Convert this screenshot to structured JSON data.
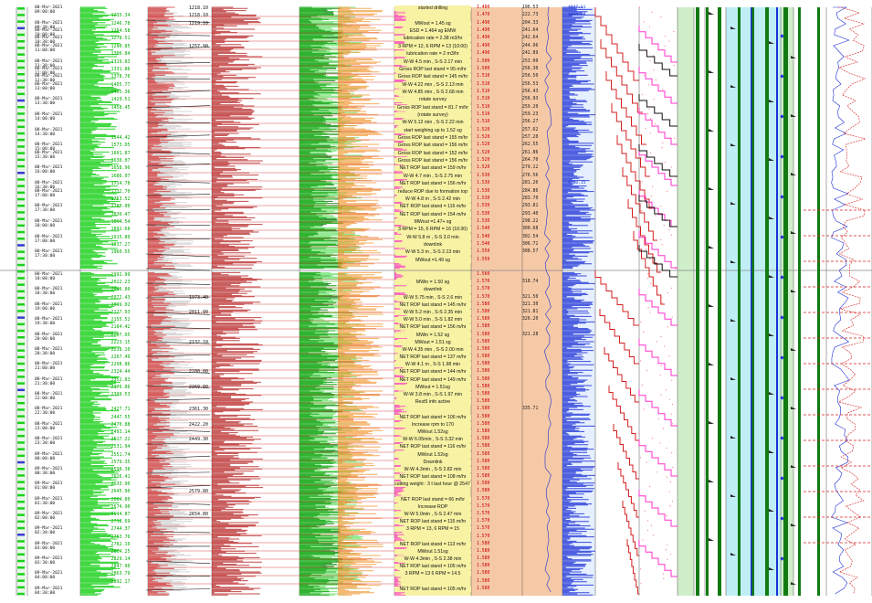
{
  "rows_top": [
    {
      "t": "08-Mar-2021\n09:00:00",
      "d1": "",
      "d2": "1218.10",
      "rem": "started drilling",
      "mw": "1.480",
      "bv": "196.53",
      "pv": "4047.11"
    },
    {
      "t": "",
      "d1": "1235.34",
      "d2": "1218.10",
      "rem": "",
      "mw": "1.470",
      "bv": "222.73",
      "pv": "4094.28"
    },
    {
      "t": "08-Mar-2021\n09:30:00",
      "d1": "1246.78",
      "d2": "1219.10",
      "rem": "MWout = 1.45 sg",
      "mw": "1.490",
      "bv": "204.33",
      "pv": ""
    },
    {
      "t": "08-Mar-2021\n10:00:00",
      "d1": "1264.58",
      "d2": "",
      "rem": "ESD = 1.464 sg EMW",
      "mw": "1.490",
      "bv": "241.64",
      "pv": ""
    },
    {
      "t": "08-Mar-2021\n10:30:00",
      "d1": "1278.51",
      "d2": "",
      "rem": "lubrication rate = 2.38 m3/hr",
      "mw": "1.490",
      "bv": "242.64",
      "pv": ""
    },
    {
      "t": "08-Mar-2021\n11:00:00",
      "d1": "1290.85",
      "d2": "1257.90",
      "rem": "3 RPM = 12, 6 RPM = 13 (10:00)",
      "mw": "1.490",
      "bv": "244.96",
      "pv": ""
    },
    {
      "t": "",
      "d1": "1306.84",
      "d2": "",
      "rem": "lubrication rate = 2 m3/hr",
      "mw": "1.490",
      "bv": "242.89",
      "pv": ""
    },
    {
      "t": "08-Mar-2021\n11:30:00",
      "d1": "1319.83",
      "d2": "",
      "rem": "W-W 4.5 min , S-S 2.17 min",
      "mw": "1.500",
      "bv": "253.00",
      "pv": ""
    },
    {
      "t": "08-Mar-2021\n12:00:00",
      "d1": "1331.86",
      "d2": "",
      "rem": "Gross ROP last stand = 95 m/hr",
      "mw": "1.500",
      "bv": "256.30",
      "pv": ""
    },
    {
      "t": "08-Mar-2021\n12:30:00",
      "d1": "1378.76",
      "d2": "",
      "rem": "Gross ROP last stand = 145 m/hr",
      "mw": "1.510",
      "bv": "256.50",
      "pv": ""
    },
    {
      "t": "08-Mar-2021\n13:00:00",
      "d1": "1405.77",
      "d2": "",
      "rem": "W-W 4.22 min , S-S 2.13 min",
      "mw": "1.510",
      "bv": "256.53",
      "pv": ""
    },
    {
      "t": "",
      "d1": "1405.36",
      "d2": "",
      "rem": "W-W 4.85 min , S-S 2.68 min",
      "mw": "1.510",
      "bv": "256.43",
      "pv": ""
    },
    {
      "t": "08-Mar-2021\n13:30:00",
      "d1": "1429.51",
      "d2": "",
      "rem": "rotate survey",
      "mw": "1.510",
      "bv": "256.93",
      "pv": ""
    },
    {
      "t": "",
      "d1": "1458.45",
      "d2": "",
      "rem": "Gross ROP last stand = 81.7 m/hr",
      "mw": "1.510",
      "bv": "259.20",
      "pv": ""
    },
    {
      "t": "08-Mar-2021\n14:00:00",
      "d1": "",
      "d2": "",
      "rem": "(rotate survey)",
      "mw": "1.510",
      "bv": "259.23",
      "pv": ""
    },
    {
      "t": "",
      "d1": "",
      "d2": "",
      "rem": "W-W 5.12 min , S-S 2.22 min",
      "mw": "1.510",
      "bv": "256.27",
      "pv": ""
    },
    {
      "t": "08-Mar-2021\n14:30:00",
      "d1": "",
      "d2": "",
      "rem": "start weighing up to 1.52 sg",
      "mw": "1.520",
      "bv": "257.62",
      "pv": ""
    },
    {
      "t": "",
      "d1": "1544.42",
      "d2": "",
      "rem": "Gross ROP last stand = 155 m/hr",
      "mw": "1.520",
      "bv": "257.20",
      "pv": ""
    },
    {
      "t": "08-Mar-2021\n15:00:00",
      "d1": "1573.05",
      "d2": "",
      "rem": "Gross ROP last stand = 156 m/hr",
      "mw": "1.520",
      "bv": "262.55",
      "pv": ""
    },
    {
      "t": "08-Mar-2021\n15:30:00",
      "d1": "1601.87",
      "d2": "",
      "rem": "Gross ROP last stand = 152 m/hr",
      "mw": "1.520",
      "bv": "261.86",
      "pv": ""
    },
    {
      "t": "",
      "d1": "1630.07",
      "d2": "",
      "rem": "Gross ROP last stand = 156 m/hr",
      "mw": "1.520",
      "bv": "264.70",
      "pv": ""
    },
    {
      "t": "08-Mar-2021\n16:00:00",
      "d1": "1658.96",
      "d2": "",
      "rem": "NET ROP last stand = 159 m/hr",
      "mw": "1.520",
      "bv": "279.12",
      "pv": ""
    },
    {
      "t": "",
      "d1": "1686.07",
      "d2": "",
      "rem": "W-W 4.7 min , S-S 2.75 min",
      "mw": "1.530",
      "bv": "276.56",
      "pv": ""
    },
    {
      "t": "08-Mar-2021\n16:30:00",
      "d1": "1714.78",
      "d2": "",
      "rem": "NET ROP last stand = 156 m/hr",
      "mw": "1.530",
      "bv": "281.26",
      "pv": "4540.15"
    },
    {
      "t": "08-Mar-2021\n17:00:00",
      "d1": "1732.70",
      "d2": "",
      "rem": "reduce ROP due to formation top",
      "mw": "1.530",
      "bv": "284.86",
      "pv": ""
    },
    {
      "t": "",
      "d1": "1753.52",
      "d2": "",
      "rem": "W-W 4.8 m , S-S 2.42 min",
      "mw": "1.530",
      "bv": "283.70",
      "pv": ""
    },
    {
      "t": "08-Mar-2021\n17:30:00",
      "d1": "1780.00",
      "d2": "",
      "rem": "NET ROP last stand = 116 m/hr",
      "mw": "1.530",
      "bv": "293.81",
      "pv": ""
    },
    {
      "t": "",
      "d1": "1836.47",
      "d2": "",
      "rem": "NET ROP last stand = 154 m/hr",
      "mw": "1.530",
      "bv": "293.40",
      "pv": ""
    },
    {
      "t": "08-Mar-2021\n18:00:00",
      "d1": "1864.54",
      "d2": "",
      "rem": "MWout =1.47+ sg",
      "mw": "1.530",
      "bv": "298.22",
      "pv": ""
    },
    {
      "t": "",
      "d1": "1892.68",
      "d2": "",
      "rem": "3 RPM = 15, 6 RPM = 16 (16:30)",
      "mw": "1.540",
      "bv": "300.68",
      "pv": ""
    },
    {
      "t": "08-Mar-2021\n17:00:00",
      "d1": "1915.89",
      "d2": "",
      "rem": "W-W 5.8 m , S-S 3.0 min",
      "mw": "1.540",
      "bv": "302.54",
      "pv": ""
    },
    {
      "t": "",
      "d1": "1937.27",
      "d2": "",
      "rem": "downlink",
      "mw": "1.540",
      "bv": "306.72",
      "pv": ""
    },
    {
      "t": "08-Mar-2021\n17:30:00",
      "d1": "1960.55",
      "d2": "",
      "rem": "W-W 5.3 m , S-S 2.13 min",
      "mw": "1.550",
      "bv": "308.57",
      "pv": ""
    },
    {
      "t": "",
      "d1": "",
      "d2": "",
      "rem": "MWout =1.49 sg",
      "mw": "1.550",
      "bv": "",
      "pv": ""
    }
  ],
  "rows_bottom": [
    {
      "t": "08-Mar-2021\n18:00:00",
      "d1": "1992.99",
      "d2": "",
      "rem": "",
      "mw": "1.560",
      "bv": "",
      "pv": ""
    },
    {
      "t": "",
      "d1": "2022.23",
      "d2": "",
      "rem": "MWin = 1.50 sg",
      "mw": "1.570",
      "bv": "318.74",
      "pv": ""
    },
    {
      "t": "08-Mar-2021\n18:30:00",
      "d1": "2046.80",
      "d2": "",
      "rem": "downlink",
      "mw": "1.570",
      "bv": "",
      "pv": ""
    },
    {
      "t": "",
      "d1": "2072.43",
      "d2": "1973.40",
      "rem": "W-W 5.75 min , S-S 2.6 min",
      "mw": "1.570",
      "bv": "321.50",
      "pv": ""
    },
    {
      "t": "08-Mar-2021\n19:00:00",
      "d1": "2099.02",
      "d2": "",
      "rem": "NET ROP last stand = 145 m/hr",
      "mw": "1.580",
      "bv": "321.30",
      "pv": ""
    },
    {
      "t": "",
      "d1": "2127.93",
      "d2": "2011.90",
      "rem": "W-W 5.2 min , S-S 2.35 min",
      "mw": "1.580",
      "bv": "321.81",
      "pv": ""
    },
    {
      "t": "08-Mar-2021\n19:30:00",
      "d1": "2155.52",
      "d2": "",
      "rem": "W-W 5.0 min , S-S 1.82 min",
      "mw": "1.580",
      "bv": "326.20",
      "pv": ""
    },
    {
      "t": "",
      "d1": "2184.42",
      "d2": "",
      "rem": "NET ROP last stand = 156 m/hr",
      "mw": "1.580",
      "bv": "",
      "pv": ""
    },
    {
      "t": "08-Mar-2021\n20:00:00",
      "d1": "2207.05",
      "d2": "",
      "rem": "MWin = 1.52 sg",
      "mw": "1.580",
      "bv": "321.28",
      "pv": ""
    },
    {
      "t": "",
      "d1": "2223.15",
      "d2": "2132.10",
      "rem": "MWout = 1.51 sg",
      "mw": "1.580",
      "bv": "",
      "pv": ""
    },
    {
      "t": "08-Mar-2021\n20:30:00",
      "d1": "2238.10",
      "d2": "",
      "rem": "W-W 4.35 min , S-S 2.00 min",
      "mw": "1.580",
      "bv": "",
      "pv": ""
    },
    {
      "t": "",
      "d1": "2267.49",
      "d2": "",
      "rem": "NET ROP last stand = 137 m/hr",
      "mw": "1.580",
      "bv": "",
      "pv": ""
    },
    {
      "t": "08-Mar-2021\n21:00:00",
      "d1": "2298.86",
      "d2": "",
      "rem": "W-W 4.1 m , S-S 1.98 min",
      "mw": "1.580",
      "bv": "",
      "pv": ""
    },
    {
      "t": "",
      "d1": "2324.44",
      "d2": "2200.00",
      "rem": "NET ROP last stand = 144 m/hr",
      "mw": "1.580",
      "bv": "",
      "pv": ""
    },
    {
      "t": "08-Mar-2021\n21:30:00",
      "d1": "2352.83",
      "d2": "",
      "rem": "NET ROP last stand = 149 m/hr",
      "mw": "1.580",
      "bv": "",
      "pv": ""
    },
    {
      "t": "",
      "d1": "2376.86",
      "d2": "2269.80",
      "rem": "MWout = 1.51sg",
      "mw": "1.580",
      "bv": "",
      "pv": ""
    },
    {
      "t": "08-Mar-2021\n22:00:00",
      "d1": "2399.53",
      "d2": "",
      "rem": "W-W 3.8 min , S-S 1.97 min",
      "mw": "1.580",
      "bv": "",
      "pv": ""
    },
    {
      "t": "",
      "d1": "",
      "d2": "",
      "rem": "Rest5 info active",
      "mw": "1.580",
      "bv": "",
      "pv": ""
    },
    {
      "t": "08-Mar-2021\n22:30:00",
      "d1": "2427.71",
      "d2": "2361.30",
      "rem": "",
      "mw": "1.580",
      "bv": "335.71",
      "pv": ""
    },
    {
      "t": "",
      "d1": "2447.55",
      "d2": "",
      "rem": "NET ROP last stand = 106 m/hr",
      "mw": "1.580",
      "bv": "",
      "pv": ""
    },
    {
      "t": "08-Mar-2021\n23:00:00",
      "d1": "2470.88",
      "d2": "2422.20",
      "rem": "Increase rpm to 170",
      "mw": "1.580",
      "bv": "",
      "pv": ""
    },
    {
      "t": "",
      "d1": "2493.14",
      "d2": "",
      "rem": "MWout 1.52sg",
      "mw": "1.580",
      "bv": "",
      "pv": ""
    },
    {
      "t": "08-Mar-2021\n23:30:00",
      "d1": "2517.22",
      "d2": "2449.30",
      "rem": "W-W 6.05min , S-S 3.32 min",
      "mw": "1.580",
      "bv": "",
      "pv": ""
    },
    {
      "t": "",
      "d1": "2531.94",
      "d2": "",
      "rem": "NET ROP last stand = 116 m/hr",
      "mw": "1.580",
      "bv": "",
      "pv": ""
    },
    {
      "t": "09-Mar-2021\n00:00:00",
      "d1": "2551.74",
      "d2": "",
      "rem": "MWout 1.52sg",
      "mw": "1.580",
      "bv": "",
      "pv": ""
    },
    {
      "t": "",
      "d1": "2579.35",
      "d2": "",
      "rem": "Downlink",
      "mw": "1.580",
      "bv": "",
      "pv": ""
    },
    {
      "t": "09-Mar-2021\n00:30:00",
      "d1": "2598.38",
      "d2": "",
      "rem": "W-W 4.3min , S-S 2.82 min",
      "mw": "1.580",
      "bv": "",
      "pv": ""
    },
    {
      "t": "",
      "d1": "2616.41",
      "d2": "",
      "rem": "NET ROP last stand = 108 m/hr",
      "mw": "1.580",
      "bv": "",
      "pv": ""
    },
    {
      "t": "09-Mar-2021\n01:00:00",
      "d1": "2633.90",
      "d2": "",
      "rem": "cutting weight : 3 t last hour @ 2547 m LD / 2650",
      "mw": "1.580",
      "bv": "",
      "pv": ""
    },
    {
      "t": "",
      "d1": "2645.90",
      "d2": "2579.80",
      "rem": "",
      "mw": "1.580",
      "bv": "",
      "pv": ""
    },
    {
      "t": "09-Mar-2021\n01:30:00",
      "d1": "2664.80",
      "d2": "",
      "rem": "NET ROP last stand = 66 m/hr",
      "mw": "1.570",
      "bv": "",
      "pv": ""
    },
    {
      "t": "",
      "d1": "2674.90",
      "d2": "",
      "rem": "Increase ROP",
      "mw": "1.570",
      "bv": "",
      "pv": ""
    },
    {
      "t": "09-Mar-2021\n02:00:00",
      "d1": "2694.87",
      "d2": "2654.80",
      "rem": "W-W 5.0min , S-S 2.47 min",
      "mw": "1.570",
      "bv": "",
      "pv": ""
    },
    {
      "t": "",
      "d1": "2718.69",
      "d2": "",
      "rem": "NET ROP last stand = 115 m/hr",
      "mw": "1.570",
      "bv": "",
      "pv": ""
    },
    {
      "t": "09-Mar-2021\n02:30:00",
      "d1": "2744.37",
      "d2": "",
      "rem": "3 RPM = 13, 6 RPM = 15",
      "mw": "1.570",
      "bv": "",
      "pv": ""
    },
    {
      "t": "",
      "d1": "2763.76",
      "d2": "",
      "rem": "",
      "mw": "1.570",
      "bv": "",
      "pv": ""
    },
    {
      "t": "09-Mar-2021\n03:00:00",
      "d1": "2782.19",
      "d2": "",
      "rem": "NET ROP last stand = 113 m/hr",
      "mw": "1.580",
      "bv": "",
      "pv": ""
    },
    {
      "t": "",
      "d1": "2804.25",
      "d2": "",
      "rem": "MWout 1.51sg",
      "mw": "1.580",
      "bv": "",
      "pv": ""
    },
    {
      "t": "09-Mar-2021\n03:30:00",
      "d1": "2829.14",
      "d2": "",
      "rem": "W-W 4.3min , S-S 2.38 min",
      "mw": "1.580",
      "bv": "",
      "pv": ""
    },
    {
      "t": "",
      "d1": "2847.90",
      "d2": "",
      "rem": "NET ROP last stand = 105 m/hr",
      "mw": "1.580",
      "bv": "",
      "pv": ""
    },
    {
      "t": "09-Mar-2021\n04:00:00",
      "d1": "2863.79",
      "d2": "",
      "rem": "3 RPM = 13  6 RPM = 14.5",
      "mw": "1.580",
      "bv": "",
      "pv": ""
    },
    {
      "t": "",
      "d1": "2892.17",
      "d2": "",
      "rem": "",
      "mw": "1.580",
      "bv": "",
      "pv": ""
    },
    {
      "t": "09-Mar-2021\n04:30:00",
      "d1": "",
      "d2": "",
      "rem": "NET ROP last stand = 105 m/hr",
      "mw": "1.580",
      "bv": "",
      "pv": ""
    }
  ],
  "chart_data": {
    "type": "line",
    "title": "",
    "xlabel": "",
    "ylabel": "",
    "start_time": "08-Mar-2021 09:00:00",
    "end_time": "09-Mar-2021 04:30:00",
    "depth_series": {
      "name": "",
      "times_h": [
        0,
        1,
        2,
        3,
        4,
        5,
        6,
        7,
        8,
        9,
        10,
        11,
        12,
        13,
        14,
        15,
        16,
        17,
        18,
        19,
        19.5
      ],
      "values": [
        1218,
        1264,
        1306,
        1378,
        1429,
        1458,
        1544,
        1630,
        1714,
        1780,
        1864,
        1937,
        2022,
        2155,
        2267,
        2376,
        2470,
        2598,
        2694,
        2782,
        2863
      ]
    },
    "colors": {
      "green": "#1bd11b",
      "darkgreen": "#117a11",
      "red": "#d42020",
      "orange": "#f08a1a",
      "magenta": "#ff33cc",
      "blue": "#1a2fd6",
      "yellow": "#f7f2a4",
      "cyan": "#bfeef5",
      "lightgreen": "#cfeec9",
      "peach": "#f6c9a6",
      "grey": "#bdbdbd"
    }
  }
}
